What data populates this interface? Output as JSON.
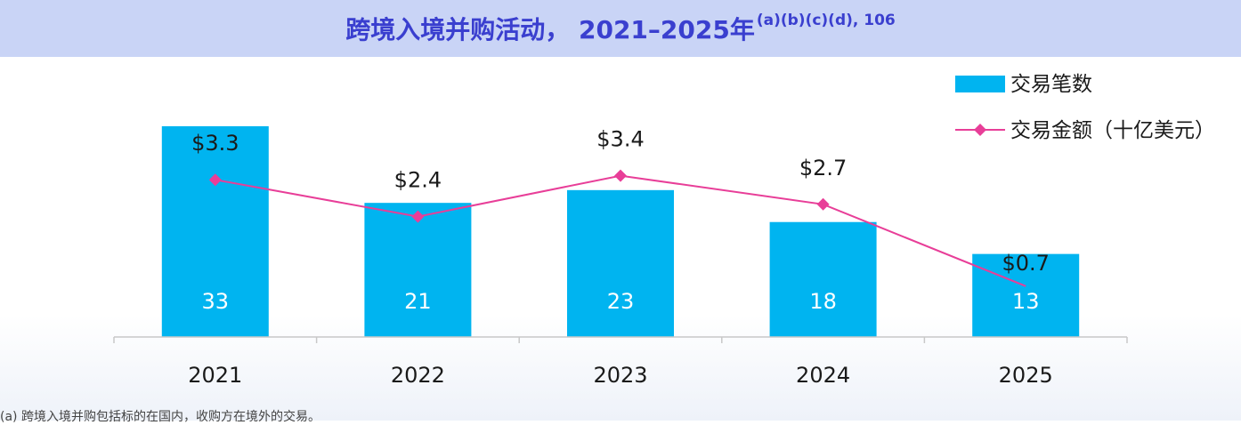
{
  "title": {
    "main": "跨境入境并购活动， 2021–2025年",
    "superscript": "(a)(b)(c)(d), 106"
  },
  "colors": {
    "title_bar_bg": "#c9d4f6",
    "title_text": "#3a3fcf",
    "bar": "#00b4f0",
    "line": "#e83e98",
    "axis": "#c8c8c8"
  },
  "chart_data": {
    "type": "bar+line",
    "categories": [
      "2021",
      "2022",
      "2023",
      "2024",
      "2025"
    ],
    "series": [
      {
        "name": "交易笔数",
        "type": "bar",
        "values": [
          33,
          21,
          23,
          18,
          13
        ],
        "labels": [
          "33",
          "21",
          "23",
          "18",
          "13"
        ]
      },
      {
        "name": "交易金额（十亿美元）",
        "type": "line",
        "marker": "diamond",
        "values": [
          3.3,
          2.4,
          3.4,
          2.7,
          0.7
        ],
        "labels": [
          "$3.3",
          "$2.4",
          "$3.4",
          "$2.7",
          "$0.7"
        ]
      }
    ],
    "legend": {
      "position": "top-right"
    },
    "grid": false
  },
  "footnote": "(a) 跨境入境并购包括标的在国内，收购方在境外的交易。"
}
